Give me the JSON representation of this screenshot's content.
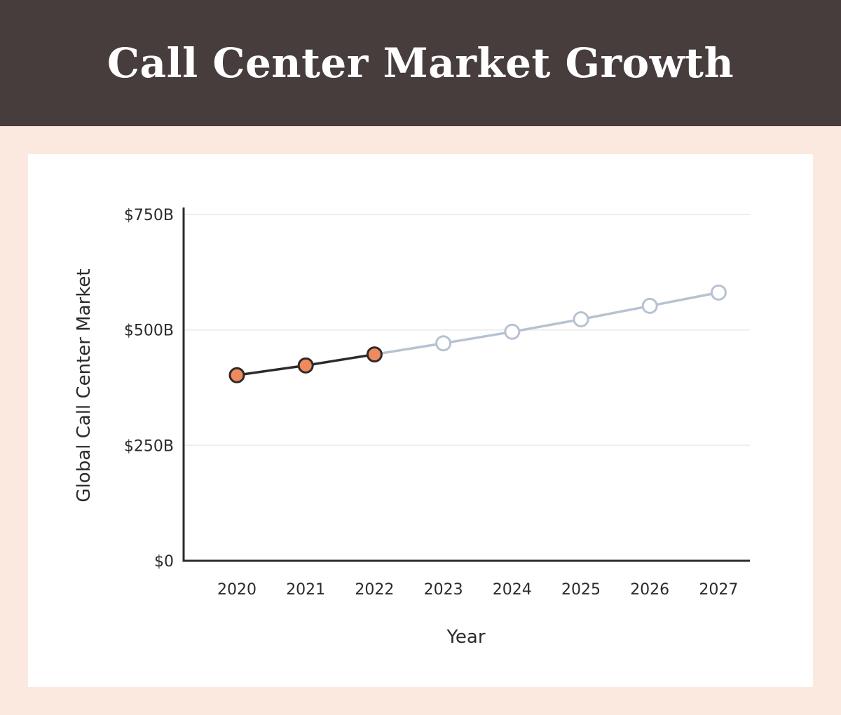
{
  "chart_data": {
    "type": "line",
    "title": "Call Center Market Growth",
    "xlabel": "Year",
    "ylabel": "Global Call Center Market",
    "categories": [
      "2020",
      "2021",
      "2022",
      "2023",
      "2024",
      "2025",
      "2026",
      "2027"
    ],
    "series": [
      {
        "values": [
          402,
          423,
          447,
          null,
          null,
          null,
          null,
          null
        ],
        "color": "#ef8a5e",
        "line_color": "#2f2a2a"
      },
      {
        "values": [
          null,
          null,
          447,
          471,
          496,
          523,
          552,
          581
        ],
        "color": "#ffffff",
        "line_color": "#b7c2d1"
      }
    ],
    "ylim": [
      0,
      750
    ],
    "yticks": [
      0,
      250,
      500,
      750
    ],
    "ytick_labels": [
      "$0",
      "$250B",
      "$500B",
      "$750B"
    ],
    "grid": true
  }
}
